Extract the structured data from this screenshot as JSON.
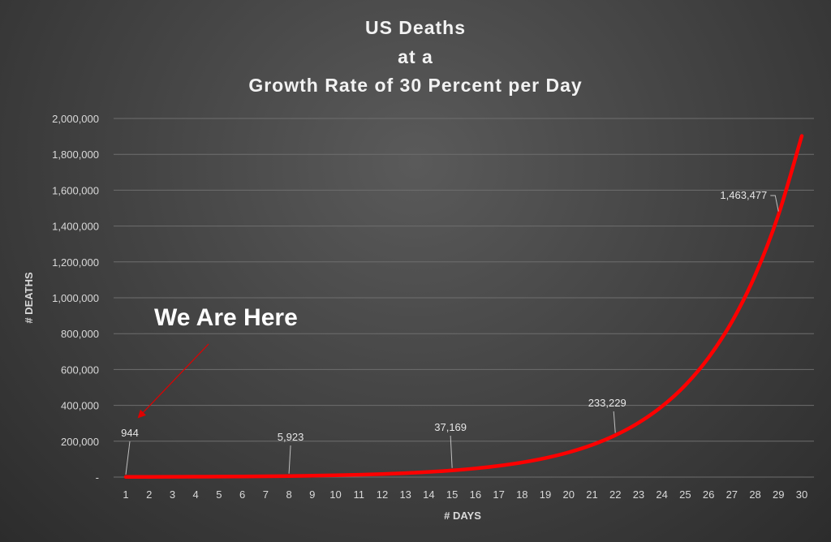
{
  "colors": {
    "series_line": "#ff0000",
    "arrow": "#e00000",
    "background": "#454545"
  },
  "chart_data": {
    "type": "line",
    "title": [
      "US Deaths",
      "at a",
      "Growth Rate of 30 Percent per Day"
    ],
    "xlabel": "# DAYS",
    "ylabel": "# DEATHS",
    "ylim": [
      0,
      2000000
    ],
    "grid": true,
    "legend": "none",
    "y_tick_labels": [
      "-",
      "200,000",
      "400,000",
      "600,000",
      "800,000",
      "1,000,000",
      "1,200,000",
      "1,400,000",
      "1,600,000",
      "1,800,000",
      "2,000,000"
    ],
    "y_tick_values": [
      0,
      200000,
      400000,
      600000,
      800000,
      1000000,
      1200000,
      1400000,
      1600000,
      1800000,
      2000000
    ],
    "x": [
      1,
      2,
      3,
      4,
      5,
      6,
      7,
      8,
      9,
      10,
      11,
      12,
      13,
      14,
      15,
      16,
      17,
      18,
      19,
      20,
      21,
      22,
      23,
      24,
      25,
      26,
      27,
      28,
      29,
      30
    ],
    "series": [
      {
        "values": [
          944,
          1227,
          1595,
          2074,
          2696,
          3505,
          4556,
          5923,
          7700,
          10010,
          13013,
          16917,
          21992,
          28589,
          37169,
          48320,
          62816,
          81661,
          106159,
          138007,
          179409,
          233229,
          303198,
          394157,
          512404,
          666125,
          865963,
          1125752,
          1463477,
          1902520
        ]
      }
    ],
    "data_labels": [
      {
        "x": 1,
        "text": "944"
      },
      {
        "x": 8,
        "text": "5,923"
      },
      {
        "x": 15,
        "text": "37,169"
      },
      {
        "x": 22,
        "text": "233,229"
      },
      {
        "x": 29,
        "text": "1,463,477"
      }
    ],
    "annotation": "We Are Here"
  }
}
